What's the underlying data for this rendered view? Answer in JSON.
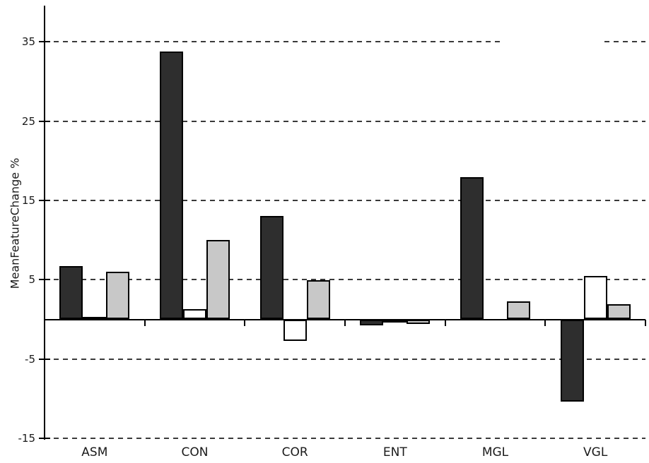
{
  "chart_data": {
    "type": "bar",
    "title": "",
    "xlabel": "",
    "ylabel": "MeanFeatureChange %",
    "categories": [
      "ASM",
      "CON",
      "COR",
      "ENT",
      "MGL",
      "VGL"
    ],
    "series": [
      {
        "name": "series-dark",
        "color": "#2e2e2e",
        "values": [
          6.7,
          33.8,
          13.0,
          -0.8,
          17.9,
          -10.4
        ]
      },
      {
        "name": "series-white",
        "color": "#ffffff",
        "values": [
          0.3,
          1.3,
          -2.7,
          -0.3,
          0.0,
          5.5
        ]
      },
      {
        "name": "series-gray",
        "color": "#c8c8c8",
        "values": [
          6.0,
          10.0,
          4.9,
          -0.6,
          2.3,
          1.9
        ]
      }
    ],
    "yticks": [
      35,
      25,
      15,
      5,
      -5,
      -15
    ],
    "ytick_labels": [
      "35",
      "25",
      "15",
      "5",
      "-5",
      "-15"
    ],
    "ylim": [
      -15,
      39.5
    ],
    "grid": "horizontal-dashed",
    "legend": "none",
    "bar_border_color": "#000000",
    "axis_color": "#000000",
    "grid_color": "#3a3a3a",
    "background_color": "#ffffff"
  }
}
